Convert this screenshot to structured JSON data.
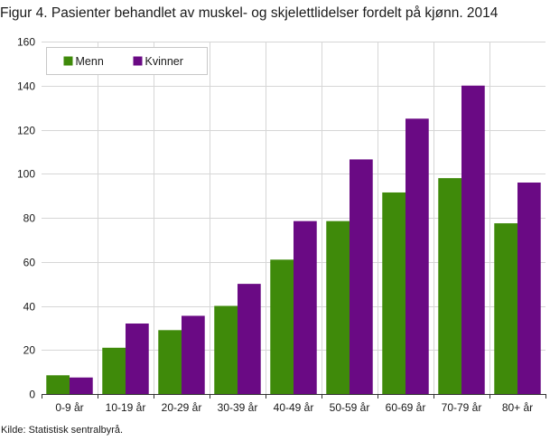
{
  "figure": {
    "title": "Figur 4. Pasienter behandlet av muskel- og skjelettlidelser fordelt på kjønn. 2014",
    "source": "Kilde: Statistisk sentralbyrå."
  },
  "chart_data": {
    "type": "bar",
    "title": "Figur 4. Pasienter behandlet av muskel- og skjelettlidelser fordelt på kjønn. 2014",
    "xlabel": "",
    "ylabel": "",
    "ylim": [
      0,
      160
    ],
    "yticks": [
      0,
      20,
      40,
      60,
      80,
      100,
      120,
      140,
      160
    ],
    "grid": true,
    "legend_position": "top-left",
    "categories": [
      "0-9 år",
      "10-19 år",
      "20-29 år",
      "30-39 år",
      "40-49 år",
      "50-59 år",
      "60-69 år",
      "70-79 år",
      "80+ år"
    ],
    "series": [
      {
        "name": "Menn",
        "color": "#3f8a0a",
        "values": [
          8.5,
          21,
          29,
          40,
          61,
          78.5,
          91.5,
          98,
          77.5
        ]
      },
      {
        "name": "Kvinner",
        "color": "#6a0a84",
        "values": [
          7.5,
          32,
          35.5,
          50,
          78.5,
          106.5,
          125,
          140,
          96
        ]
      }
    ]
  }
}
